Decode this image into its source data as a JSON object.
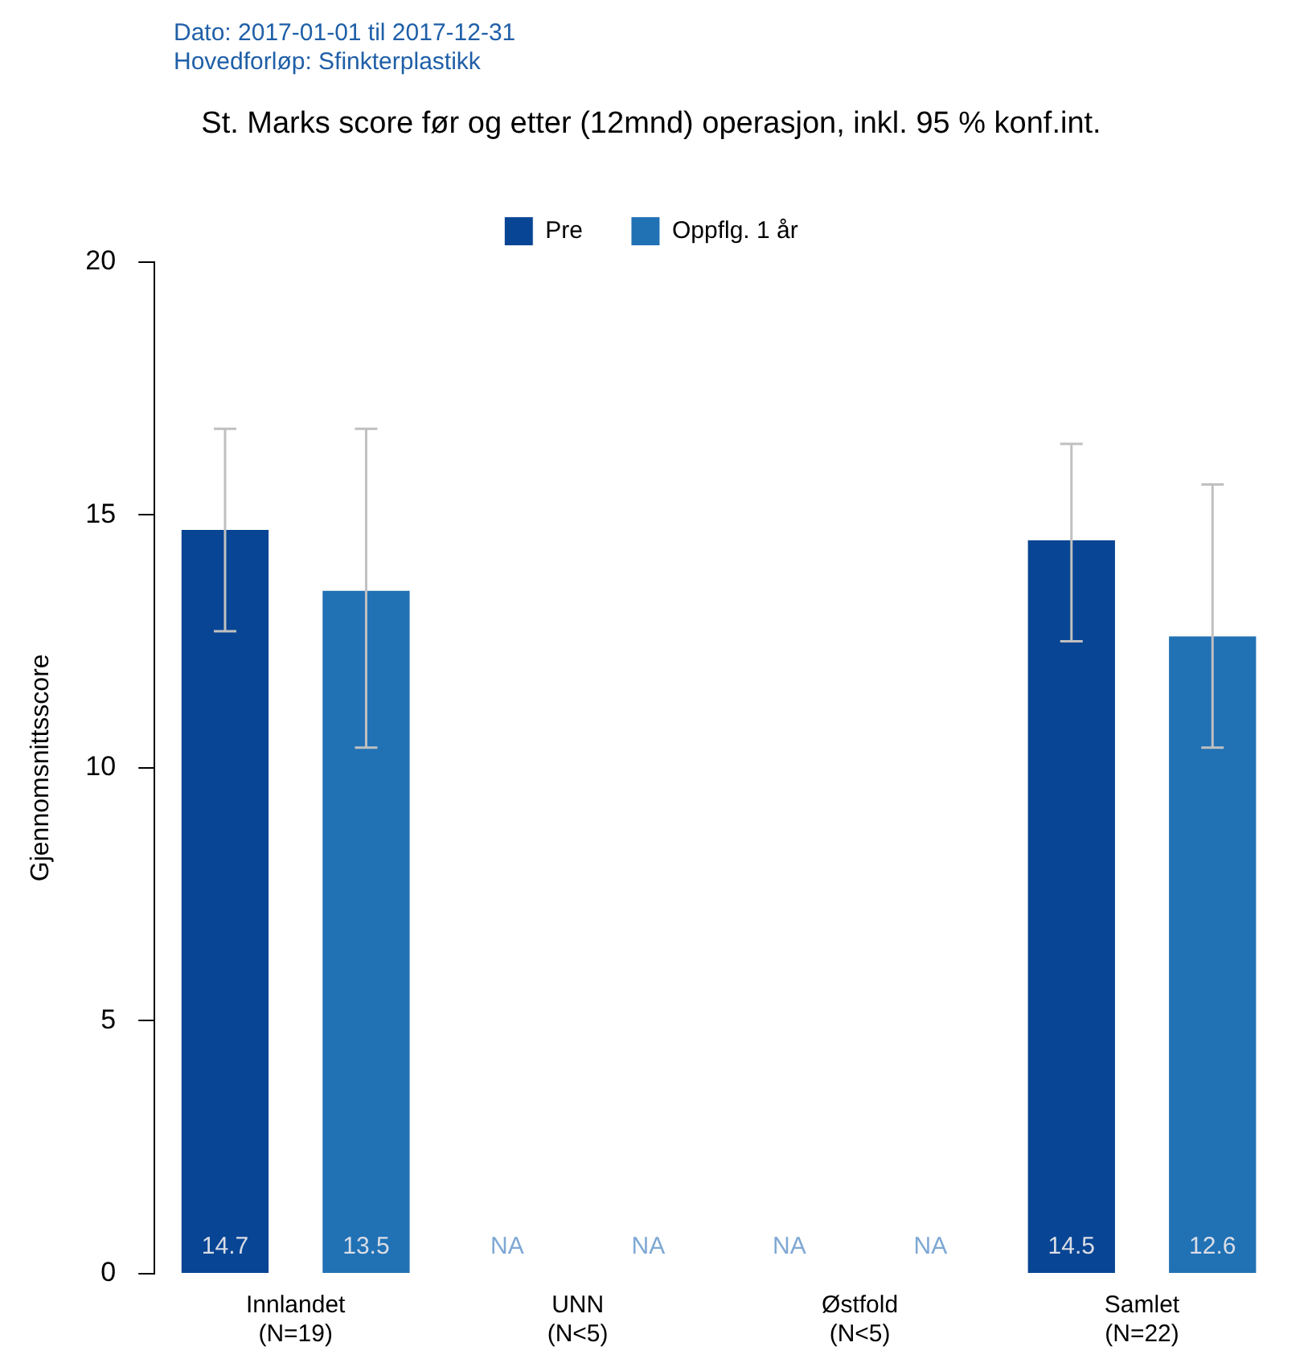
{
  "chart_data": {
    "type": "bar",
    "title": "St. Marks score før og etter (12mnd) operasjon, inkl. 95 % konf.int.",
    "ylabel": "Gjennomsnittsscore",
    "annotations": [
      "Dato: 2017-01-01 til 2017-12-31",
      "Hovedforløp: Sfinkterplastikk"
    ],
    "categories": [
      "Innlandet\n(N=19)",
      "UNN\n(N<5)",
      "Østfold\n(N<5)",
      "Samlet\n(N=22)"
    ],
    "series": [
      {
        "name": "Pre",
        "color": "#084594",
        "values": [
          14.7,
          null,
          null,
          14.5
        ],
        "errors": [
          [
            12.7,
            16.7
          ],
          null,
          null,
          [
            12.5,
            16.4
          ]
        ],
        "value_labels": [
          "14.7",
          "NA",
          "NA",
          "14.5"
        ]
      },
      {
        "name": "Oppflg. 1 år",
        "color": "#2171b5",
        "values": [
          13.5,
          null,
          null,
          12.6
        ],
        "errors": [
          [
            10.4,
            16.7
          ],
          null,
          null,
          [
            10.4,
            15.6
          ]
        ],
        "value_labels": [
          "13.5",
          "NA",
          "NA",
          "12.6"
        ]
      }
    ],
    "ylim": [
      0,
      20
    ],
    "yticks": [
      0,
      5,
      10,
      15,
      20
    ],
    "grid": false,
    "legend": "top"
  }
}
